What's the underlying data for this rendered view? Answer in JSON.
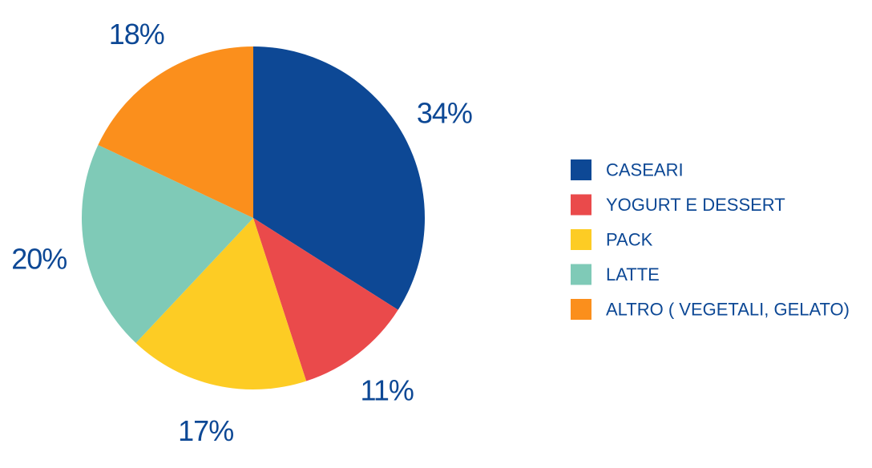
{
  "chart_data": {
    "type": "pie",
    "categories": [
      "CASEARI",
      "YOGURT E DESSERT",
      "PACK",
      "LATTE",
      "ALTRO ( VEGETALI, GELATO)"
    ],
    "values": [
      34,
      11,
      17,
      20,
      18
    ],
    "data_labels": [
      "34%",
      "11%",
      "17%",
      "20%",
      "18%"
    ],
    "colors": [
      "#0d4895",
      "#ea4a4b",
      "#fdcc24",
      "#7fcab7",
      "#fb8f1c"
    ],
    "start_direction": "top",
    "direction": "clockwise",
    "legend_placement": "right",
    "label_color": "#0d4895"
  }
}
